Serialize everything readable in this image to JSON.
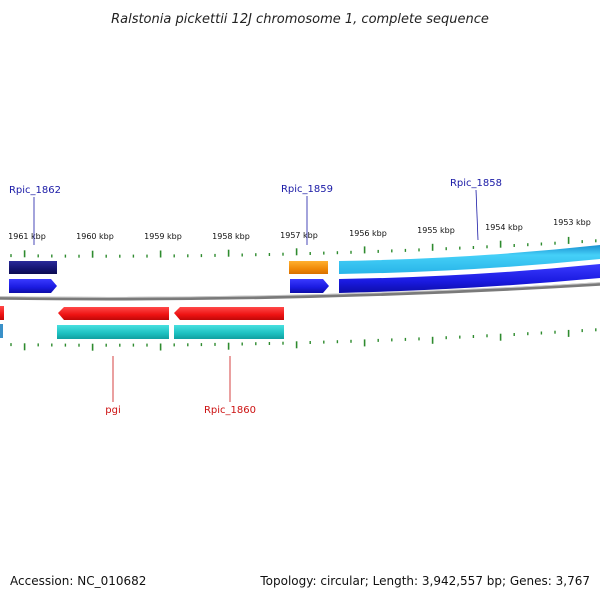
{
  "title": "Ralstonia pickettii 12J chromosome 1, complete sequence",
  "accession": "Accession: NC_010682",
  "summary": "Topology: circular; Length: 3,942,557 bp; Genes: 3,767",
  "scale_labels": [
    "1961 kbp",
    "1960 kbp",
    "1959 kbp",
    "1958 kbp",
    "1957 kbp",
    "1956 kbp",
    "1955 kbp",
    "1954 kbp",
    "1953 kbp"
  ],
  "top_gene_labels": [
    "Rpic_1862",
    "Rpic_1859",
    "Rpic_1858"
  ],
  "bottom_gene_labels": [
    "pgi",
    "Rpic_1860"
  ],
  "colors": {
    "axis": "#8a8a8a",
    "tick": "#2e8b2e",
    "top_label": "#1a1aa6",
    "bottom_label": "#cc1111",
    "navy": "#1a1a80",
    "blue": "#1a1ae6",
    "light_blue": "#2fc3f0",
    "orange": "#f59a10",
    "red": "#f01818",
    "teal": "#20c4c4"
  }
}
